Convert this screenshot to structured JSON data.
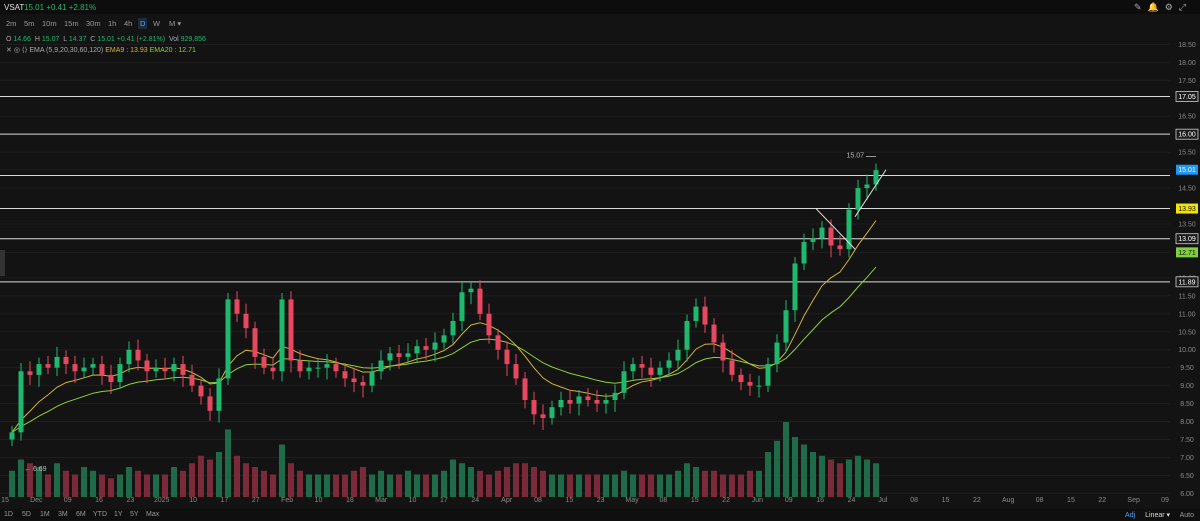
{
  "header": {
    "symbol": "VSAT",
    "last": "15.01",
    "change": "+0.41",
    "change_pct": "+2.81%"
  },
  "timeframes": [
    "2m",
    "5m",
    "10m",
    "15m",
    "30m",
    "1h",
    "4h",
    "D",
    "W",
    "M ▾"
  ],
  "active_timeframe": "D",
  "legend": {
    "o_label": "O",
    "open": "14.66",
    "h_label": "H",
    "high": "15.07",
    "l_label": "L",
    "low": "14.37",
    "c_label": "C",
    "close": "15.01",
    "chg": "+0.41 (+2.81%)",
    "vol_label": "Vol",
    "volume": "929,856",
    "ema_label": "EMA (5,9,20,30,60,120)",
    "ema9_label": "EMA9 : 13.93",
    "ema20_label": "EMA20 : 12.71"
  },
  "ranges": [
    "1D",
    "5D",
    "1M",
    "3M",
    "6M",
    "YTD",
    "1Y",
    "5Y",
    "Max"
  ],
  "bottom_right": {
    "adj": "Adj",
    "scale": "Linear ▾",
    "auto": "Auto"
  },
  "colors": {
    "up": "#1fb86f",
    "down": "#e8485f",
    "ema9": "#d4b23a",
    "ema20": "#8fcf3a",
    "hline": "#d9d9d9",
    "last": "#2196f3"
  },
  "chart_data": {
    "type": "candlestick",
    "symbol": "VSAT",
    "interval": "D",
    "price_axis_ticks": [
      "18.50",
      "18.00",
      "17.50",
      "17.05",
      "16.50",
      "16.00",
      "15.50",
      "15.01",
      "14.50",
      "13.93",
      "13.50",
      "13.09",
      "12.71",
      "12.00",
      "11.89",
      "11.50",
      "11.00",
      "10.50",
      "10.00",
      "9.50",
      "9.00",
      "8.50",
      "8.00",
      "7.50",
      "7.00",
      "6.50",
      "6.00"
    ],
    "ylim": [
      5.9,
      18.9
    ],
    "time_axis_labels": [
      "15",
      "Dec",
      "09",
      "16",
      "23",
      "2025",
      "10",
      "17",
      "27",
      "Feb",
      "10",
      "18",
      "Mar",
      "10",
      "17",
      "24",
      "Apr",
      "08",
      "15",
      "23",
      "May",
      "08",
      "15",
      "22",
      "Jun",
      "09",
      "16",
      "24",
      "Jul",
      "08",
      "15",
      "22",
      "Aug",
      "08",
      "15",
      "22",
      "Sep",
      "09"
    ],
    "horizontal_levels": [
      17.05,
      16.0,
      14.85,
      13.93,
      13.09,
      11.89
    ],
    "level_labels": [
      "17.05",
      "16.00",
      "13.93",
      "13.09",
      "11.89"
    ],
    "last_price": 15.01,
    "last_price_label": "15.01",
    "high_marker": "15.07",
    "low_marker": "6.69",
    "ema9_last": 13.93,
    "ema9_last_label": "13.93",
    "ema20_last": 12.71,
    "ema20_last_label": "12.71",
    "close_path": [
      7.7,
      9.4,
      9.3,
      9.6,
      9.5,
      9.8,
      9.6,
      9.4,
      9.5,
      9.6,
      9.3,
      9.1,
      9.6,
      10.0,
      9.7,
      9.4,
      9.5,
      9.4,
      9.6,
      9.3,
      9.0,
      8.7,
      8.3,
      9.2,
      11.4,
      11.0,
      10.6,
      9.8,
      9.5,
      9.4,
      11.4,
      9.7,
      9.4,
      9.5,
      9.5,
      9.6,
      9.4,
      9.2,
      9.1,
      9.0,
      9.4,
      9.7,
      9.9,
      9.8,
      9.9,
      10.1,
      10.0,
      10.2,
      10.4,
      10.8,
      11.6,
      11.7,
      11.0,
      10.4,
      10.0,
      9.6,
      9.2,
      8.6,
      8.2,
      8.1,
      8.4,
      8.6,
      8.5,
      8.7,
      8.6,
      8.5,
      8.6,
      8.8,
      9.4,
      9.6,
      9.5,
      9.3,
      9.5,
      9.7,
      10.0,
      10.8,
      11.2,
      10.7,
      10.2,
      9.7,
      9.3,
      9.1,
      9.0,
      9.0,
      9.6,
      10.2,
      11.1,
      12.4,
      13.0,
      13.1,
      13.4,
      12.9,
      12.8,
      13.9,
      14.5,
      14.6,
      15.0
    ],
    "volume_path": [
      0.35,
      0.5,
      0.45,
      0.4,
      0.3,
      0.45,
      0.35,
      0.3,
      0.4,
      0.35,
      0.3,
      0.25,
      0.3,
      0.4,
      0.35,
      0.3,
      0.3,
      0.3,
      0.4,
      0.35,
      0.45,
      0.55,
      0.5,
      0.6,
      0.9,
      0.55,
      0.45,
      0.4,
      0.35,
      0.3,
      0.7,
      0.45,
      0.35,
      0.3,
      0.3,
      0.3,
      0.3,
      0.3,
      0.35,
      0.4,
      0.3,
      0.35,
      0.3,
      0.3,
      0.35,
      0.3,
      0.3,
      0.3,
      0.35,
      0.5,
      0.45,
      0.4,
      0.35,
      0.3,
      0.35,
      0.4,
      0.45,
      0.45,
      0.4,
      0.35,
      0.3,
      0.3,
      0.3,
      0.3,
      0.3,
      0.3,
      0.3,
      0.3,
      0.35,
      0.3,
      0.3,
      0.3,
      0.3,
      0.3,
      0.35,
      0.45,
      0.4,
      0.35,
      0.35,
      0.3,
      0.3,
      0.3,
      0.35,
      0.35,
      0.6,
      0.75,
      1.0,
      0.8,
      0.7,
      0.6,
      0.55,
      0.5,
      0.45,
      0.5,
      0.55,
      0.5,
      0.45
    ]
  }
}
